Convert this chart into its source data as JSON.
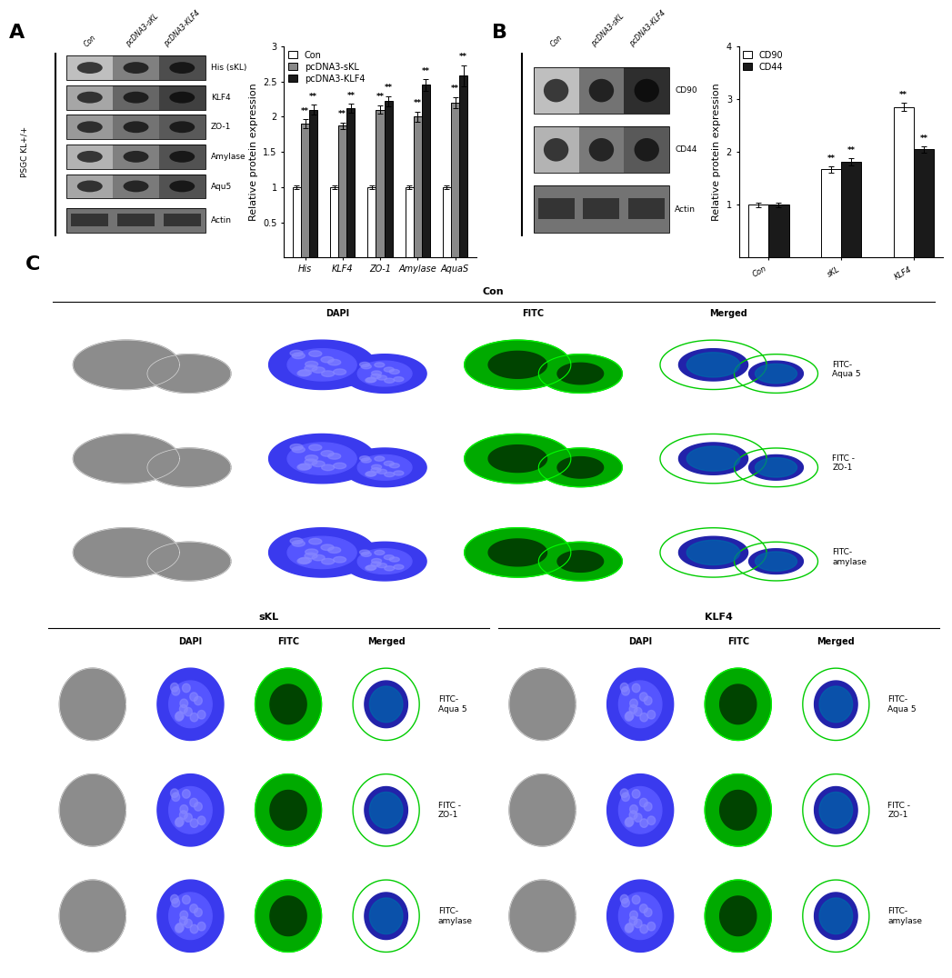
{
  "panel_A_bar": {
    "categories": [
      "His",
      "KLF4",
      "ZO-1",
      "Amylase",
      "AquaS"
    ],
    "con": [
      1.0,
      1.0,
      1.0,
      1.0,
      1.0
    ],
    "pcDNA3_sKL": [
      1.9,
      1.87,
      2.1,
      2.0,
      2.2
    ],
    "pcDNA3_KLF4": [
      2.1,
      2.12,
      2.22,
      2.45,
      2.58
    ],
    "con_err": [
      0.03,
      0.03,
      0.03,
      0.03,
      0.03
    ],
    "sKL_err": [
      0.06,
      0.05,
      0.06,
      0.07,
      0.08
    ],
    "KLF4_err": [
      0.07,
      0.06,
      0.07,
      0.08,
      0.15
    ],
    "ylabel": "Relative protein expression",
    "ylim": [
      0,
      3.0
    ],
    "yticks": [
      0.5,
      1.0,
      1.5,
      2.0,
      2.5,
      3.0
    ],
    "colors": [
      "#ffffff",
      "#888888",
      "#1a1a1a"
    ],
    "legend_labels": [
      "Con",
      "pcDNA3-sKL",
      "pcDNA3-KLF4"
    ]
  },
  "panel_B_bar": {
    "categories": [
      "Con",
      "sKL",
      "KLF4"
    ],
    "CD90": [
      1.0,
      1.67,
      2.85
    ],
    "CD44": [
      1.0,
      1.82,
      2.05
    ],
    "CD90_err": [
      0.04,
      0.06,
      0.08
    ],
    "CD44_err": [
      0.04,
      0.07,
      0.06
    ],
    "ylabel": "Relative protein expression",
    "ylim": [
      0,
      4.0
    ],
    "yticks": [
      1.0,
      2.0,
      3.0,
      4.0
    ],
    "colors": [
      "#ffffff",
      "#1a1a1a"
    ],
    "legend_labels": [
      "CD90",
      "CD44"
    ]
  },
  "wb_labels_A": [
    "His (sKL)",
    "KLF4",
    "ZO-1",
    "Amylase",
    "Aqu5",
    "Actin"
  ],
  "wb_labels_B": [
    "CD90",
    "CD44",
    "Actin"
  ],
  "col_labels": [
    "Con",
    "pcDNA3-sKL",
    "pcDNA3-KLF4"
  ],
  "panel_label_fontsize": 16,
  "axis_label_fontsize": 8,
  "tick_fontsize": 7,
  "legend_fontsize": 7,
  "bar_width": 0.22,
  "background": "#ffffff",
  "row_labels_C": [
    "FITC-\nAqua 5",
    "FITC -\nZO-1",
    "FITC-\namylase"
  ],
  "col_headers_C": [
    "DAPI",
    "FITC",
    "Merged"
  ],
  "groups_C": [
    "Con",
    "sKL",
    "KLF4"
  ]
}
